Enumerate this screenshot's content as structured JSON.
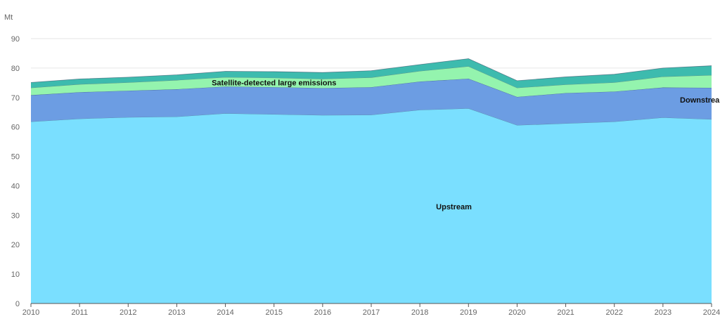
{
  "chart_data": {
    "type": "area",
    "stacked": true,
    "y_unit": "Mt",
    "title": "",
    "xlabel": "",
    "ylabel": "",
    "x": [
      "2010",
      "2011",
      "2012",
      "2013",
      "2014",
      "2015",
      "2016",
      "2017",
      "2018",
      "2019",
      "2020",
      "2021",
      "2022",
      "2023",
      "2024"
    ],
    "y_ticks": [
      "0",
      "10",
      "20",
      "30",
      "40",
      "50",
      "60",
      "70",
      "80",
      "90"
    ],
    "ylim": [
      0,
      90
    ],
    "grid": true,
    "series": [
      {
        "name": "Upstream",
        "color": "#7ADFFF",
        "values": [
          61.8,
          62.8,
          63.3,
          63.5,
          64.6,
          64.3,
          64.0,
          64.1,
          65.8,
          66.3,
          60.6,
          61.2,
          61.8,
          63.2,
          62.6
        ]
      },
      {
        "name": "Downstream",
        "color": "#6C9DE3",
        "values": [
          9.0,
          9.0,
          9.0,
          9.3,
          9.1,
          9.2,
          9.2,
          9.4,
          9.6,
          10.1,
          9.6,
          10.3,
          10.2,
          10.2,
          10.7
        ]
      },
      {
        "name": "Satellite-detected large emissions",
        "color": "#94F4AE",
        "values": [
          2.5,
          2.7,
          2.8,
          3.1,
          3.2,
          3.2,
          3.1,
          3.3,
          3.6,
          4.2,
          3.1,
          2.9,
          3.1,
          3.7,
          4.3
        ]
      },
      {
        "name": "",
        "color": "#3DBBAE",
        "values": [
          1.8,
          1.8,
          1.8,
          1.8,
          2.0,
          2.1,
          2.2,
          2.3,
          2.2,
          2.6,
          2.4,
          2.6,
          2.8,
          2.9,
          3.2
        ]
      }
    ]
  }
}
